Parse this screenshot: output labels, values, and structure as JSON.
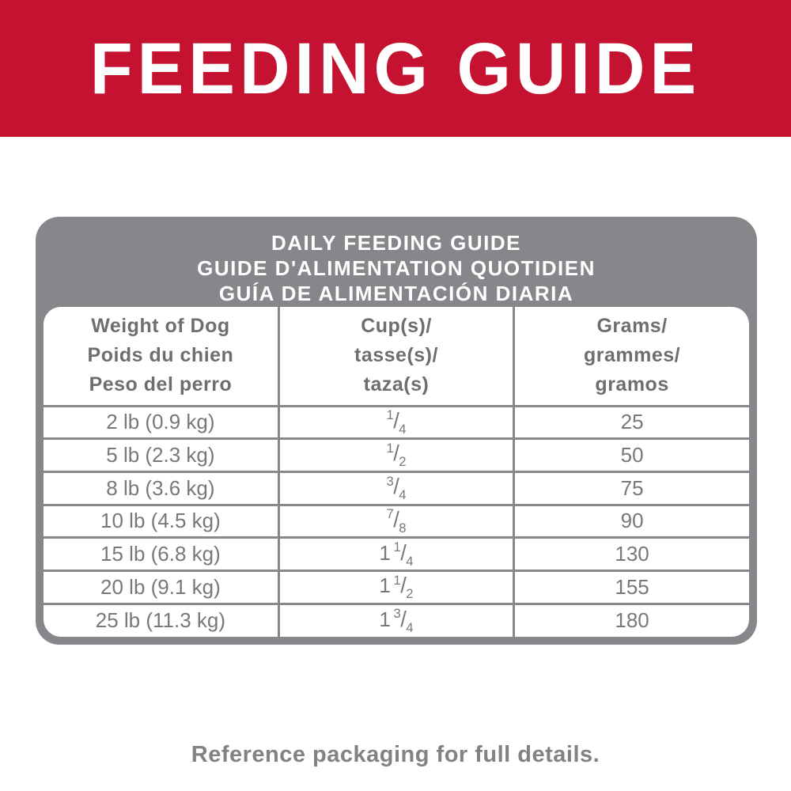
{
  "banner": {
    "title": "FEEDING GUIDE",
    "bg_color": "#C41230",
    "text_color": "#FFFFFF"
  },
  "table": {
    "header_bg": "#85878A",
    "title_lines": [
      "DAILY FEEDING GUIDE",
      "GUIDE D'ALIMENTATION QUOTIDIEN",
      "GUÍA DE ALIMENTACIÓN DIARIA"
    ],
    "columns": [
      {
        "lines": [
          "Weight of Dog",
          "Poids du chien",
          "Peso del perro"
        ]
      },
      {
        "lines": [
          "Cup(s)/",
          "tasse(s)/",
          "taza(s)"
        ]
      },
      {
        "lines": [
          "Grams/",
          "grammes/",
          "gramos"
        ]
      }
    ],
    "fraction_slash": "/",
    "rows": [
      {
        "weight": "2 lb (0.9 kg)",
        "cups": {
          "whole": "",
          "num": "1",
          "den": "4"
        },
        "grams": "25"
      },
      {
        "weight": "5 lb (2.3 kg)",
        "cups": {
          "whole": "",
          "num": "1",
          "den": "2"
        },
        "grams": "50"
      },
      {
        "weight": "8 lb (3.6 kg)",
        "cups": {
          "whole": "",
          "num": "3",
          "den": "4"
        },
        "grams": "75"
      },
      {
        "weight": "10 lb (4.5 kg)",
        "cups": {
          "whole": "",
          "num": "7",
          "den": "8"
        },
        "grams": "90"
      },
      {
        "weight": "15 lb (6.8 kg)",
        "cups": {
          "whole": "1",
          "num": "1",
          "den": "4"
        },
        "grams": "130"
      },
      {
        "weight": "20 lb (9.1 kg)",
        "cups": {
          "whole": "1",
          "num": "1",
          "den": "2"
        },
        "grams": "155"
      },
      {
        "weight": "25 lb (11.3 kg)",
        "cups": {
          "whole": "1",
          "num": "3",
          "den": "4"
        },
        "grams": "180"
      }
    ]
  },
  "footer": {
    "note": "Reference packaging for full details."
  }
}
